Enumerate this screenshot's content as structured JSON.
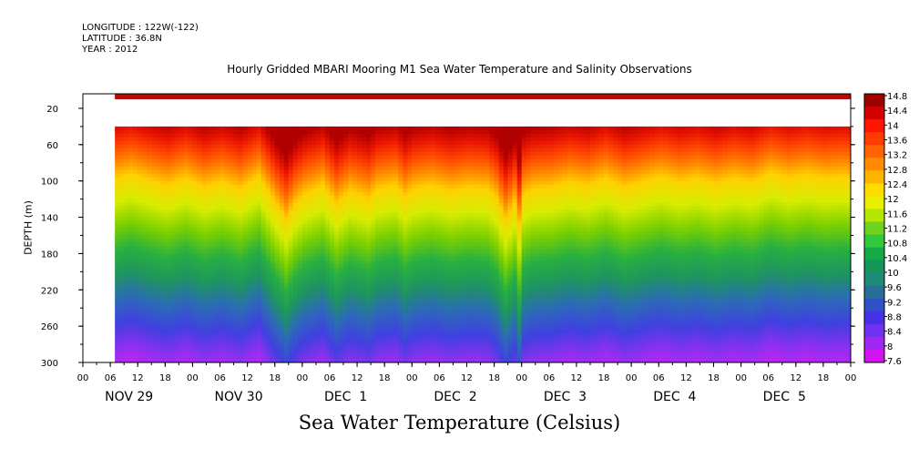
{
  "header": {
    "longitude": "LONGITUDE : 122W(-122)",
    "latitude": "LATITUDE : 36.8N",
    "year": "YEAR : 2012"
  },
  "chart_data": {
    "type": "heatmap",
    "title": "Hourly Gridded MBARI Mooring M1 Sea Water Temperature and Salinity Observations",
    "xlabel": "Sea Water Temperature (Celsius)",
    "ylabel": "DEPTH (m)",
    "x_range_hours": [
      0,
      168
    ],
    "x_tick_hours": [
      0,
      6,
      12,
      18,
      24,
      30,
      36,
      42,
      48,
      54,
      60,
      66,
      72,
      78,
      84,
      90,
      96,
      102,
      108,
      114,
      120,
      126,
      132,
      138,
      144,
      150,
      156,
      162,
      168
    ],
    "x_tick_labels": [
      "00",
      "06",
      "12",
      "18",
      "00",
      "06",
      "12",
      "18",
      "00",
      "06",
      "12",
      "18",
      "00",
      "06",
      "12",
      "18",
      "00",
      "06",
      "12",
      "18",
      "00",
      "06",
      "12",
      "18",
      "00",
      "06",
      "12",
      "18",
      "00"
    ],
    "day_labels": [
      "NOV 29",
      "NOV 30",
      "DEC  1",
      "DEC  2",
      "DEC  3",
      "DEC  4",
      "DEC  5"
    ],
    "y_ticks": [
      20,
      60,
      100,
      140,
      180,
      220,
      260,
      300
    ],
    "y_range": [
      300,
      4
    ],
    "data_start_hour": 7,
    "surface_band_depth": [
      4,
      10
    ],
    "gap_depth": [
      10,
      40
    ],
    "thermocline_depth_approx": [
      [
        7,
        100
      ],
      [
        10,
        95
      ],
      [
        14,
        102
      ],
      [
        18,
        108
      ],
      [
        22,
        100
      ],
      [
        26,
        110
      ],
      [
        30,
        104
      ],
      [
        34,
        112
      ],
      [
        38,
        98
      ],
      [
        42,
        130
      ],
      [
        44,
        145
      ],
      [
        46,
        128
      ],
      [
        48,
        118
      ],
      [
        52,
        108
      ],
      [
        55,
        128
      ],
      [
        58,
        114
      ],
      [
        62,
        122
      ],
      [
        64,
        112
      ],
      [
        68,
        108
      ],
      [
        70,
        120
      ],
      [
        72,
        112
      ],
      [
        76,
        108
      ],
      [
        80,
        114
      ],
      [
        84,
        110
      ],
      [
        88,
        112
      ],
      [
        90,
        122
      ],
      [
        92,
        145
      ],
      [
        94,
        128
      ],
      [
        95,
        150
      ],
      [
        96,
        118
      ],
      [
        98,
        112
      ],
      [
        102,
        110
      ],
      [
        106,
        104
      ],
      [
        110,
        108
      ],
      [
        114,
        100
      ],
      [
        118,
        110
      ],
      [
        122,
        104
      ],
      [
        126,
        98
      ],
      [
        130,
        104
      ],
      [
        134,
        100
      ],
      [
        138,
        106
      ],
      [
        142,
        100
      ],
      [
        146,
        104
      ],
      [
        150,
        94
      ],
      [
        154,
        100
      ],
      [
        158,
        96
      ],
      [
        162,
        100
      ],
      [
        166,
        98
      ],
      [
        168,
        100
      ]
    ],
    "colorbar_labels": [
      "14.8",
      "14.4",
      "14",
      "13.6",
      "13.2",
      "12.8",
      "12.4",
      "12",
      "11.6",
      "11.2",
      "10.8",
      "10.4",
      "10",
      "9.6",
      "9.2",
      "8.8",
      "8.4",
      "8",
      "7.6"
    ],
    "colorbar_range": [
      7.6,
      14.8
    ],
    "colorbar_colors": [
      "#a00000",
      "#d40000",
      "#ff1400",
      "#ff3c00",
      "#ff6400",
      "#ff8c00",
      "#ffb400",
      "#ffdc00",
      "#e8f000",
      "#b4e600",
      "#6ed21e",
      "#32c83c",
      "#14aa46",
      "#14965a",
      "#1e8a78",
      "#286e96",
      "#3250c8",
      "#4632e6",
      "#6e32f0",
      "#a028f0",
      "#d214f0"
    ],
    "colorscale": [
      {
        "v": 7.6,
        "c": "#d020f0"
      },
      {
        "v": 8.2,
        "c": "#9030f0"
      },
      {
        "v": 8.8,
        "c": "#4040e0"
      },
      {
        "v": 9.4,
        "c": "#2c6ab8"
      },
      {
        "v": 10.0,
        "c": "#1e9460"
      },
      {
        "v": 10.6,
        "c": "#28b040"
      },
      {
        "v": 11.2,
        "c": "#7cd000"
      },
      {
        "v": 11.8,
        "c": "#d8ec00"
      },
      {
        "v": 12.4,
        "c": "#ffd000"
      },
      {
        "v": 13.0,
        "c": "#ff8800"
      },
      {
        "v": 13.6,
        "c": "#ff4800"
      },
      {
        "v": 14.2,
        "c": "#e81400"
      },
      {
        "v": 14.8,
        "c": "#b00000"
      }
    ]
  }
}
